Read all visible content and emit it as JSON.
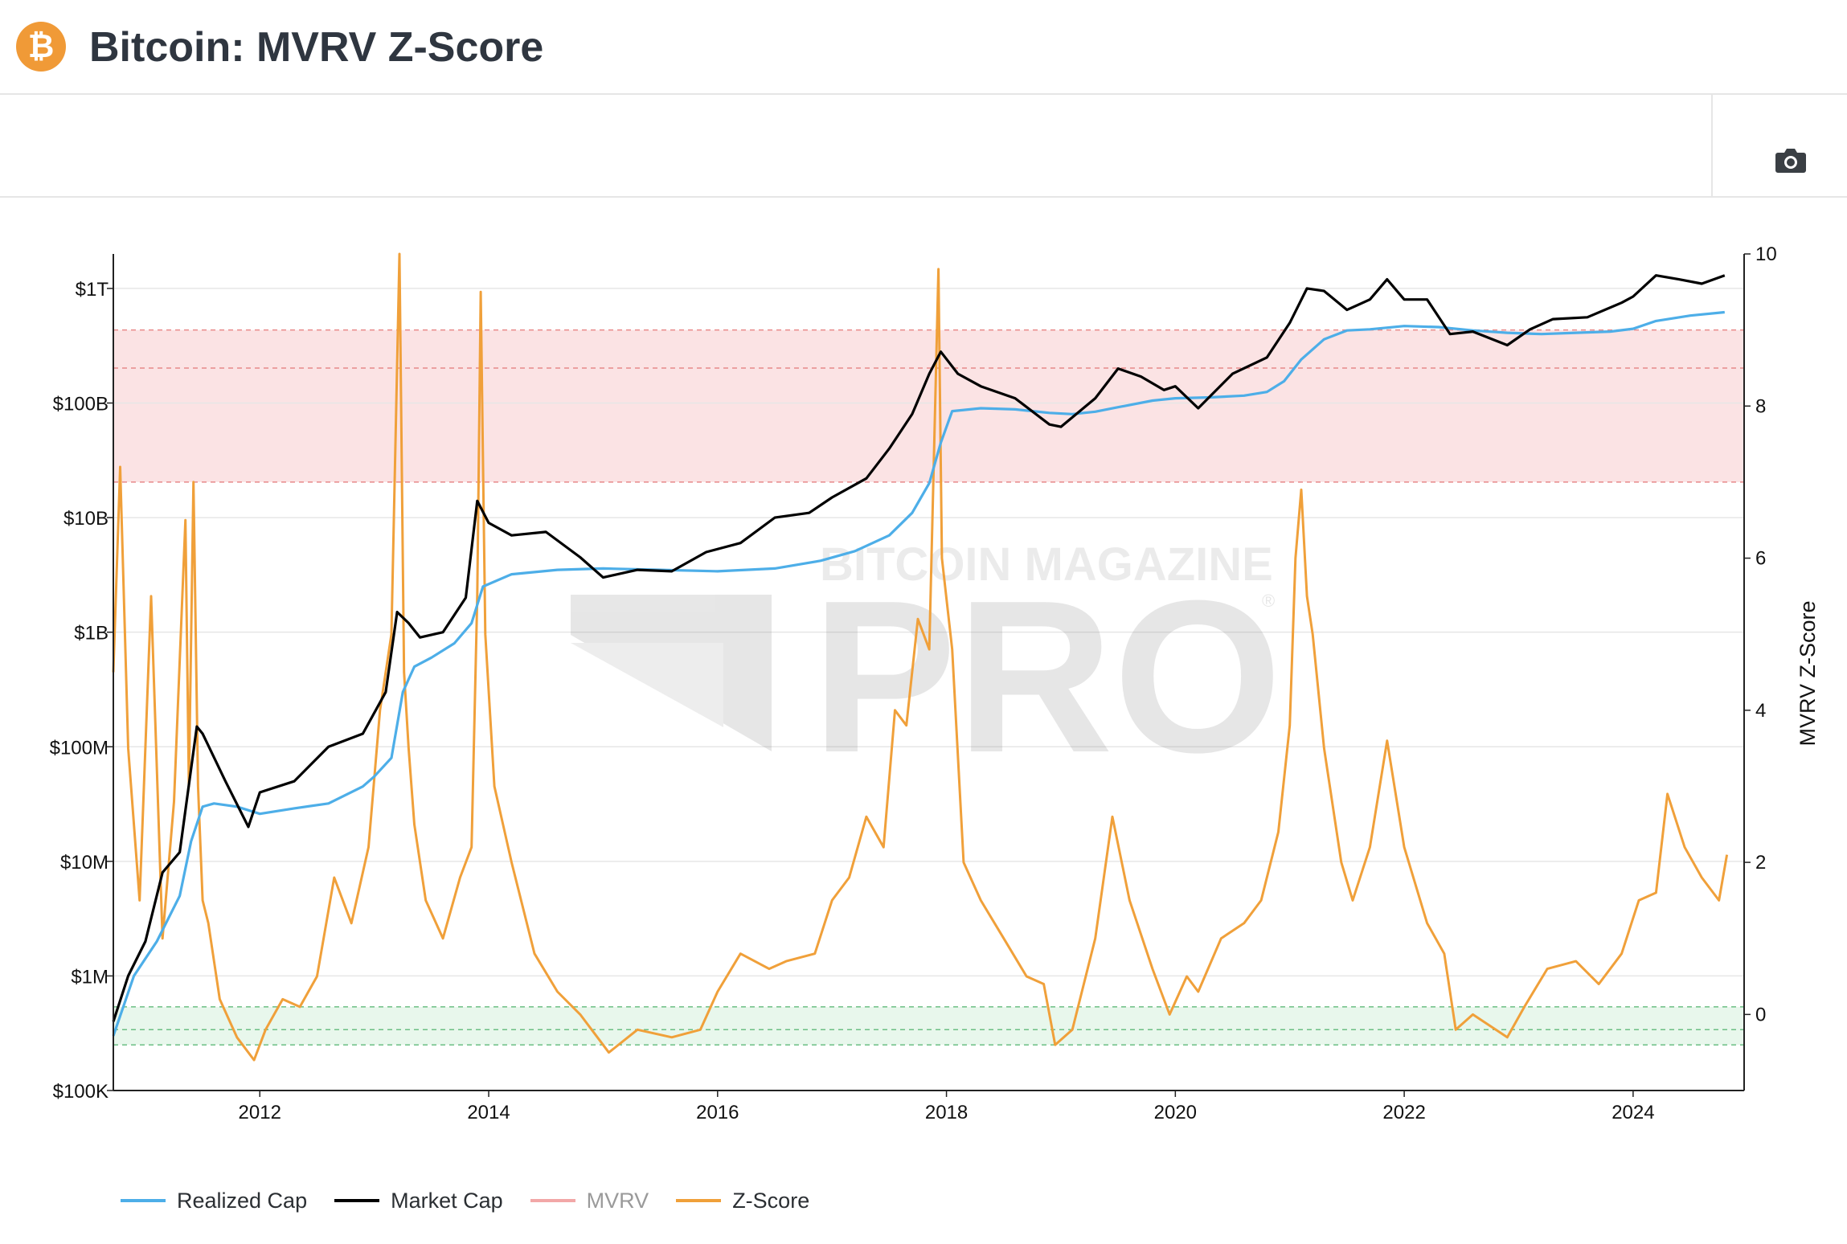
{
  "header": {
    "title": "Bitcoin: MVRV Z-Score",
    "logo_glyph": "₿",
    "logo_color": "#f09a37"
  },
  "toolbar": {
    "camera_icon": "camera-icon"
  },
  "watermark": {
    "line1": "BITCOIN MAGAZINE",
    "line2": "PRO",
    "mark": "®"
  },
  "colors": {
    "realized": "#4daee8",
    "market": "#000000",
    "mvrv": "#f2a7a7",
    "zscore": "#f0a03a",
    "red_band": "#fbe3e4",
    "green_band": "#e8f7ec"
  },
  "chart_data": {
    "type": "line",
    "title": "Bitcoin: MVRV Z-Score",
    "x_ticks": [
      "2012",
      "2014",
      "2016",
      "2018",
      "2020",
      "2022",
      "2024"
    ],
    "x_tick_years": [
      2012,
      2014,
      2016,
      2018,
      2020,
      2022,
      2024
    ],
    "xlim": [
      2010.72,
      2024.97
    ],
    "y_left": {
      "scale": "log",
      "lim": [
        100000,
        2000000000000
      ],
      "ticks": [
        "$100K",
        "$1M",
        "$10M",
        "$100M",
        "$1B",
        "$10B",
        "$100B",
        "$1T"
      ],
      "tick_values": [
        100000,
        1000000,
        10000000,
        100000000,
        1000000000,
        10000000000,
        100000000000,
        1000000000000
      ]
    },
    "y_right": {
      "label": "MVRV Z-Score",
      "lim": [
        -1,
        10
      ],
      "ticks": [
        "0",
        "2",
        "4",
        "6",
        "8",
        "10"
      ],
      "tick_values": [
        0,
        2,
        4,
        6,
        8,
        10
      ]
    },
    "bands": [
      {
        "zone": "red",
        "from": 7.0,
        "to": 9.0,
        "mid": 8.5
      },
      {
        "zone": "green",
        "from": -0.4,
        "to": 0.1,
        "mid": -0.2
      }
    ],
    "series": [
      {
        "name": "Realized Cap",
        "axis": "left",
        "x": [
          2010.72,
          2010.9,
          2011.1,
          2011.3,
          2011.4,
          2011.5,
          2011.6,
          2011.8,
          2012.0,
          2012.3,
          2012.6,
          2012.9,
          2013.0,
          2013.15,
          2013.25,
          2013.35,
          2013.5,
          2013.7,
          2013.85,
          2013.95,
          2014.2,
          2014.6,
          2015.0,
          2015.5,
          2016.0,
          2016.5,
          2016.9,
          2017.2,
          2017.5,
          2017.7,
          2017.85,
          2017.95,
          2018.05,
          2018.3,
          2018.6,
          2018.9,
          2019.1,
          2019.3,
          2019.5,
          2019.8,
          2020.0,
          2020.3,
          2020.6,
          2020.8,
          2020.95,
          2021.1,
          2021.3,
          2021.5,
          2021.7,
          2022.0,
          2022.3,
          2022.6,
          2022.9,
          2023.2,
          2023.5,
          2023.8,
          2024.0,
          2024.2,
          2024.5,
          2024.8
        ],
        "values": [
          300000,
          1000000,
          2000000,
          5000000,
          15000000,
          30000000,
          32000000,
          30000000,
          26000000,
          29000000,
          32000000,
          45000000,
          55000000,
          80000000,
          300000000,
          500000000,
          600000000,
          800000000,
          1200000000,
          2500000000,
          3200000000,
          3500000000,
          3600000000,
          3500000000,
          3400000000,
          3600000000,
          4200000000,
          5100000000,
          7000000000,
          11000000000,
          20000000000,
          45000000000,
          85000000000,
          90000000000,
          88000000000,
          82000000000,
          80000000000,
          84000000000,
          92000000000,
          105000000000,
          110000000000,
          112000000000,
          116000000000,
          125000000000,
          155000000000,
          240000000000,
          360000000000,
          430000000000,
          440000000000,
          470000000000,
          460000000000,
          430000000000,
          410000000000,
          400000000000,
          410000000000,
          420000000000,
          445000000000,
          520000000000,
          580000000000,
          620000000000
        ]
      },
      {
        "name": "Market Cap",
        "axis": "left",
        "x": [
          2010.72,
          2010.85,
          2011.0,
          2011.15,
          2011.3,
          2011.45,
          2011.5,
          2011.7,
          2011.9,
          2012.0,
          2012.3,
          2012.6,
          2012.9,
          2013.1,
          2013.2,
          2013.3,
          2013.4,
          2013.6,
          2013.8,
          2013.9,
          2014.0,
          2014.2,
          2014.5,
          2014.8,
          2015.0,
          2015.3,
          2015.6,
          2015.9,
          2016.2,
          2016.5,
          2016.8,
          2017.0,
          2017.3,
          2017.5,
          2017.7,
          2017.85,
          2017.95,
          2018.1,
          2018.3,
          2018.6,
          2018.9,
          2019.0,
          2019.3,
          2019.5,
          2019.7,
          2019.9,
          2020.0,
          2020.2,
          2020.5,
          2020.8,
          2021.0,
          2021.15,
          2021.3,
          2021.5,
          2021.7,
          2021.85,
          2022.0,
          2022.2,
          2022.4,
          2022.6,
          2022.9,
          2023.1,
          2023.3,
          2023.6,
          2023.9,
          2024.0,
          2024.2,
          2024.4,
          2024.6,
          2024.8
        ],
        "values": [
          400000,
          1000000,
          2000000,
          8000000,
          12000000,
          150000000,
          130000000,
          50000000,
          20000000,
          40000000,
          50000000,
          100000000,
          130000000,
          300000000,
          1500000000,
          1200000000,
          900000000,
          1000000000,
          2000000000,
          14000000000,
          9000000000,
          7000000000,
          7500000000,
          4500000000,
          3000000000,
          3500000000,
          3400000000,
          5000000000,
          6000000000,
          10000000000,
          11000000000,
          15000000000,
          22000000000,
          40000000000,
          80000000000,
          180000000000,
          280000000000,
          180000000000,
          140000000000,
          110000000000,
          65000000000,
          62000000000,
          110000000000,
          200000000000,
          170000000000,
          130000000000,
          140000000000,
          90000000000,
          180000000000,
          250000000000,
          500000000000,
          1000000000000,
          950000000000,
          650000000000,
          800000000000,
          1200000000000,
          800000000000,
          800000000000,
          400000000000,
          420000000000,
          320000000000,
          440000000000,
          540000000000,
          560000000000,
          750000000000,
          850000000000,
          1300000000000,
          1200000000000,
          1100000000000,
          1300000000000
        ]
      },
      {
        "name": "MVRV",
        "axis": "right",
        "x": [],
        "values": []
      },
      {
        "name": "Z-Score",
        "axis": "right",
        "x": [
          2010.72,
          2010.78,
          2010.85,
          2010.95,
          2011.05,
          2011.15,
          2011.25,
          2011.35,
          2011.38,
          2011.42,
          2011.46,
          2011.5,
          2011.55,
          2011.65,
          2011.8,
          2011.95,
          2012.05,
          2012.2,
          2012.35,
          2012.5,
          2012.65,
          2012.8,
          2012.95,
          2013.05,
          2013.15,
          2013.22,
          2013.26,
          2013.3,
          2013.35,
          2013.45,
          2013.6,
          2013.75,
          2013.85,
          2013.9,
          2013.93,
          2013.97,
          2014.05,
          2014.2,
          2014.4,
          2014.6,
          2014.8,
          2014.95,
          2015.05,
          2015.3,
          2015.6,
          2015.85,
          2016.0,
          2016.2,
          2016.45,
          2016.6,
          2016.85,
          2017.0,
          2017.15,
          2017.3,
          2017.45,
          2017.55,
          2017.65,
          2017.75,
          2017.85,
          2017.93,
          2017.96,
          2018.05,
          2018.15,
          2018.3,
          2018.5,
          2018.7,
          2018.85,
          2018.95,
          2019.1,
          2019.3,
          2019.45,
          2019.6,
          2019.8,
          2019.95,
          2020.1,
          2020.2,
          2020.4,
          2020.6,
          2020.75,
          2020.9,
          2021.0,
          2021.05,
          2021.1,
          2021.15,
          2021.2,
          2021.3,
          2021.45,
          2021.55,
          2021.7,
          2021.85,
          2022.0,
          2022.2,
          2022.35,
          2022.45,
          2022.6,
          2022.8,
          2022.9,
          2023.05,
          2023.25,
          2023.5,
          2023.7,
          2023.9,
          2024.05,
          2024.2,
          2024.3,
          2024.45,
          2024.6,
          2024.75,
          2024.82
        ],
        "values": [
          4.5,
          7.2,
          3.5,
          1.5,
          5.5,
          1.0,
          2.8,
          6.5,
          3.0,
          7.0,
          3.0,
          1.5,
          1.2,
          0.2,
          -0.3,
          -0.6,
          -0.2,
          0.2,
          0.1,
          0.5,
          1.8,
          1.2,
          2.2,
          4.0,
          5.0,
          10.0,
          4.5,
          3.5,
          2.5,
          1.5,
          1.0,
          1.8,
          2.2,
          5.5,
          9.5,
          5.0,
          3.0,
          2.0,
          0.8,
          0.3,
          0.0,
          -0.3,
          -0.5,
          -0.2,
          -0.3,
          -0.2,
          0.3,
          0.8,
          0.6,
          0.7,
          0.8,
          1.5,
          1.8,
          2.6,
          2.2,
          4.0,
          3.8,
          5.2,
          4.8,
          9.8,
          6.0,
          4.8,
          2.0,
          1.5,
          1.0,
          0.5,
          0.4,
          -0.4,
          -0.2,
          1.0,
          2.6,
          1.5,
          0.6,
          0.0,
          0.5,
          0.3,
          1.0,
          1.2,
          1.5,
          2.4,
          3.8,
          6.0,
          6.9,
          5.5,
          5.0,
          3.5,
          2.0,
          1.5,
          2.2,
          3.6,
          2.2,
          1.2,
          0.8,
          -0.2,
          0.0,
          -0.2,
          -0.3,
          0.1,
          0.6,
          0.7,
          0.4,
          0.8,
          1.5,
          1.6,
          2.9,
          2.2,
          1.8,
          1.5,
          2.1
        ]
      }
    ]
  },
  "legend": [
    {
      "label": "Realized Cap",
      "color": "#4daee8",
      "muted": false
    },
    {
      "label": "Market Cap",
      "color": "#000000",
      "muted": false
    },
    {
      "label": "MVRV",
      "color": "#f2a7a7",
      "muted": true
    },
    {
      "label": "Z-Score",
      "color": "#f0a03a",
      "muted": false
    }
  ]
}
